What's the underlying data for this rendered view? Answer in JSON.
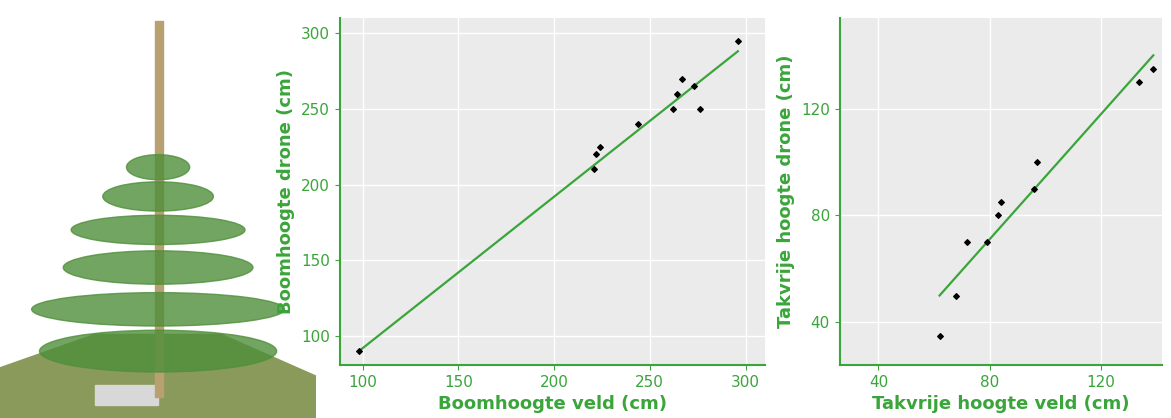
{
  "chart_data": [
    {
      "type": "scatter",
      "x_label": "Boomhoogte veld (cm)",
      "y_label": "Boomhoogte drone (cm)",
      "xlim": [
        88,
        310
      ],
      "ylim": [
        81,
        310
      ],
      "xticks": [
        100,
        150,
        200,
        250,
        300
      ],
      "yticks": [
        100,
        150,
        200,
        250,
        300
      ],
      "grid": true,
      "series": [
        {
          "type": "scatter",
          "color": "#000000",
          "marker": "D",
          "x": [
            98,
            221,
            222,
            224,
            244,
            262,
            264,
            267,
            273,
            276,
            296
          ],
          "values": [
            90,
            210,
            220,
            225,
            240,
            250,
            260,
            270,
            265,
            250,
            295
          ]
        },
        {
          "type": "line",
          "color": "#3aa53a",
          "line_style": "solid",
          "x": [
            98,
            296
          ],
          "values": [
            90,
            288
          ]
        }
      ]
    },
    {
      "type": "scatter",
      "x_label": "Takvrije hoogte veld (cm)",
      "y_label": "Takvrije hoogte drone (cm)",
      "xlim": [
        26,
        142
      ],
      "ylim": [
        24,
        154
      ],
      "xticks": [
        40,
        80,
        120
      ],
      "yticks": [
        40,
        80,
        120
      ],
      "grid": true,
      "series": [
        {
          "type": "scatter",
          "color": "#000000",
          "marker": "D",
          "x": [
            62,
            68,
            72,
            79,
            83,
            84,
            96,
            97,
            134,
            139
          ],
          "values": [
            35,
            50,
            70,
            70,
            80,
            85,
            90,
            100,
            130,
            135
          ]
        },
        {
          "type": "line",
          "color": "#3aa53a",
          "line_style": "solid",
          "x": [
            62,
            139
          ],
          "values": [
            50,
            140
          ]
        }
      ]
    }
  ]
}
